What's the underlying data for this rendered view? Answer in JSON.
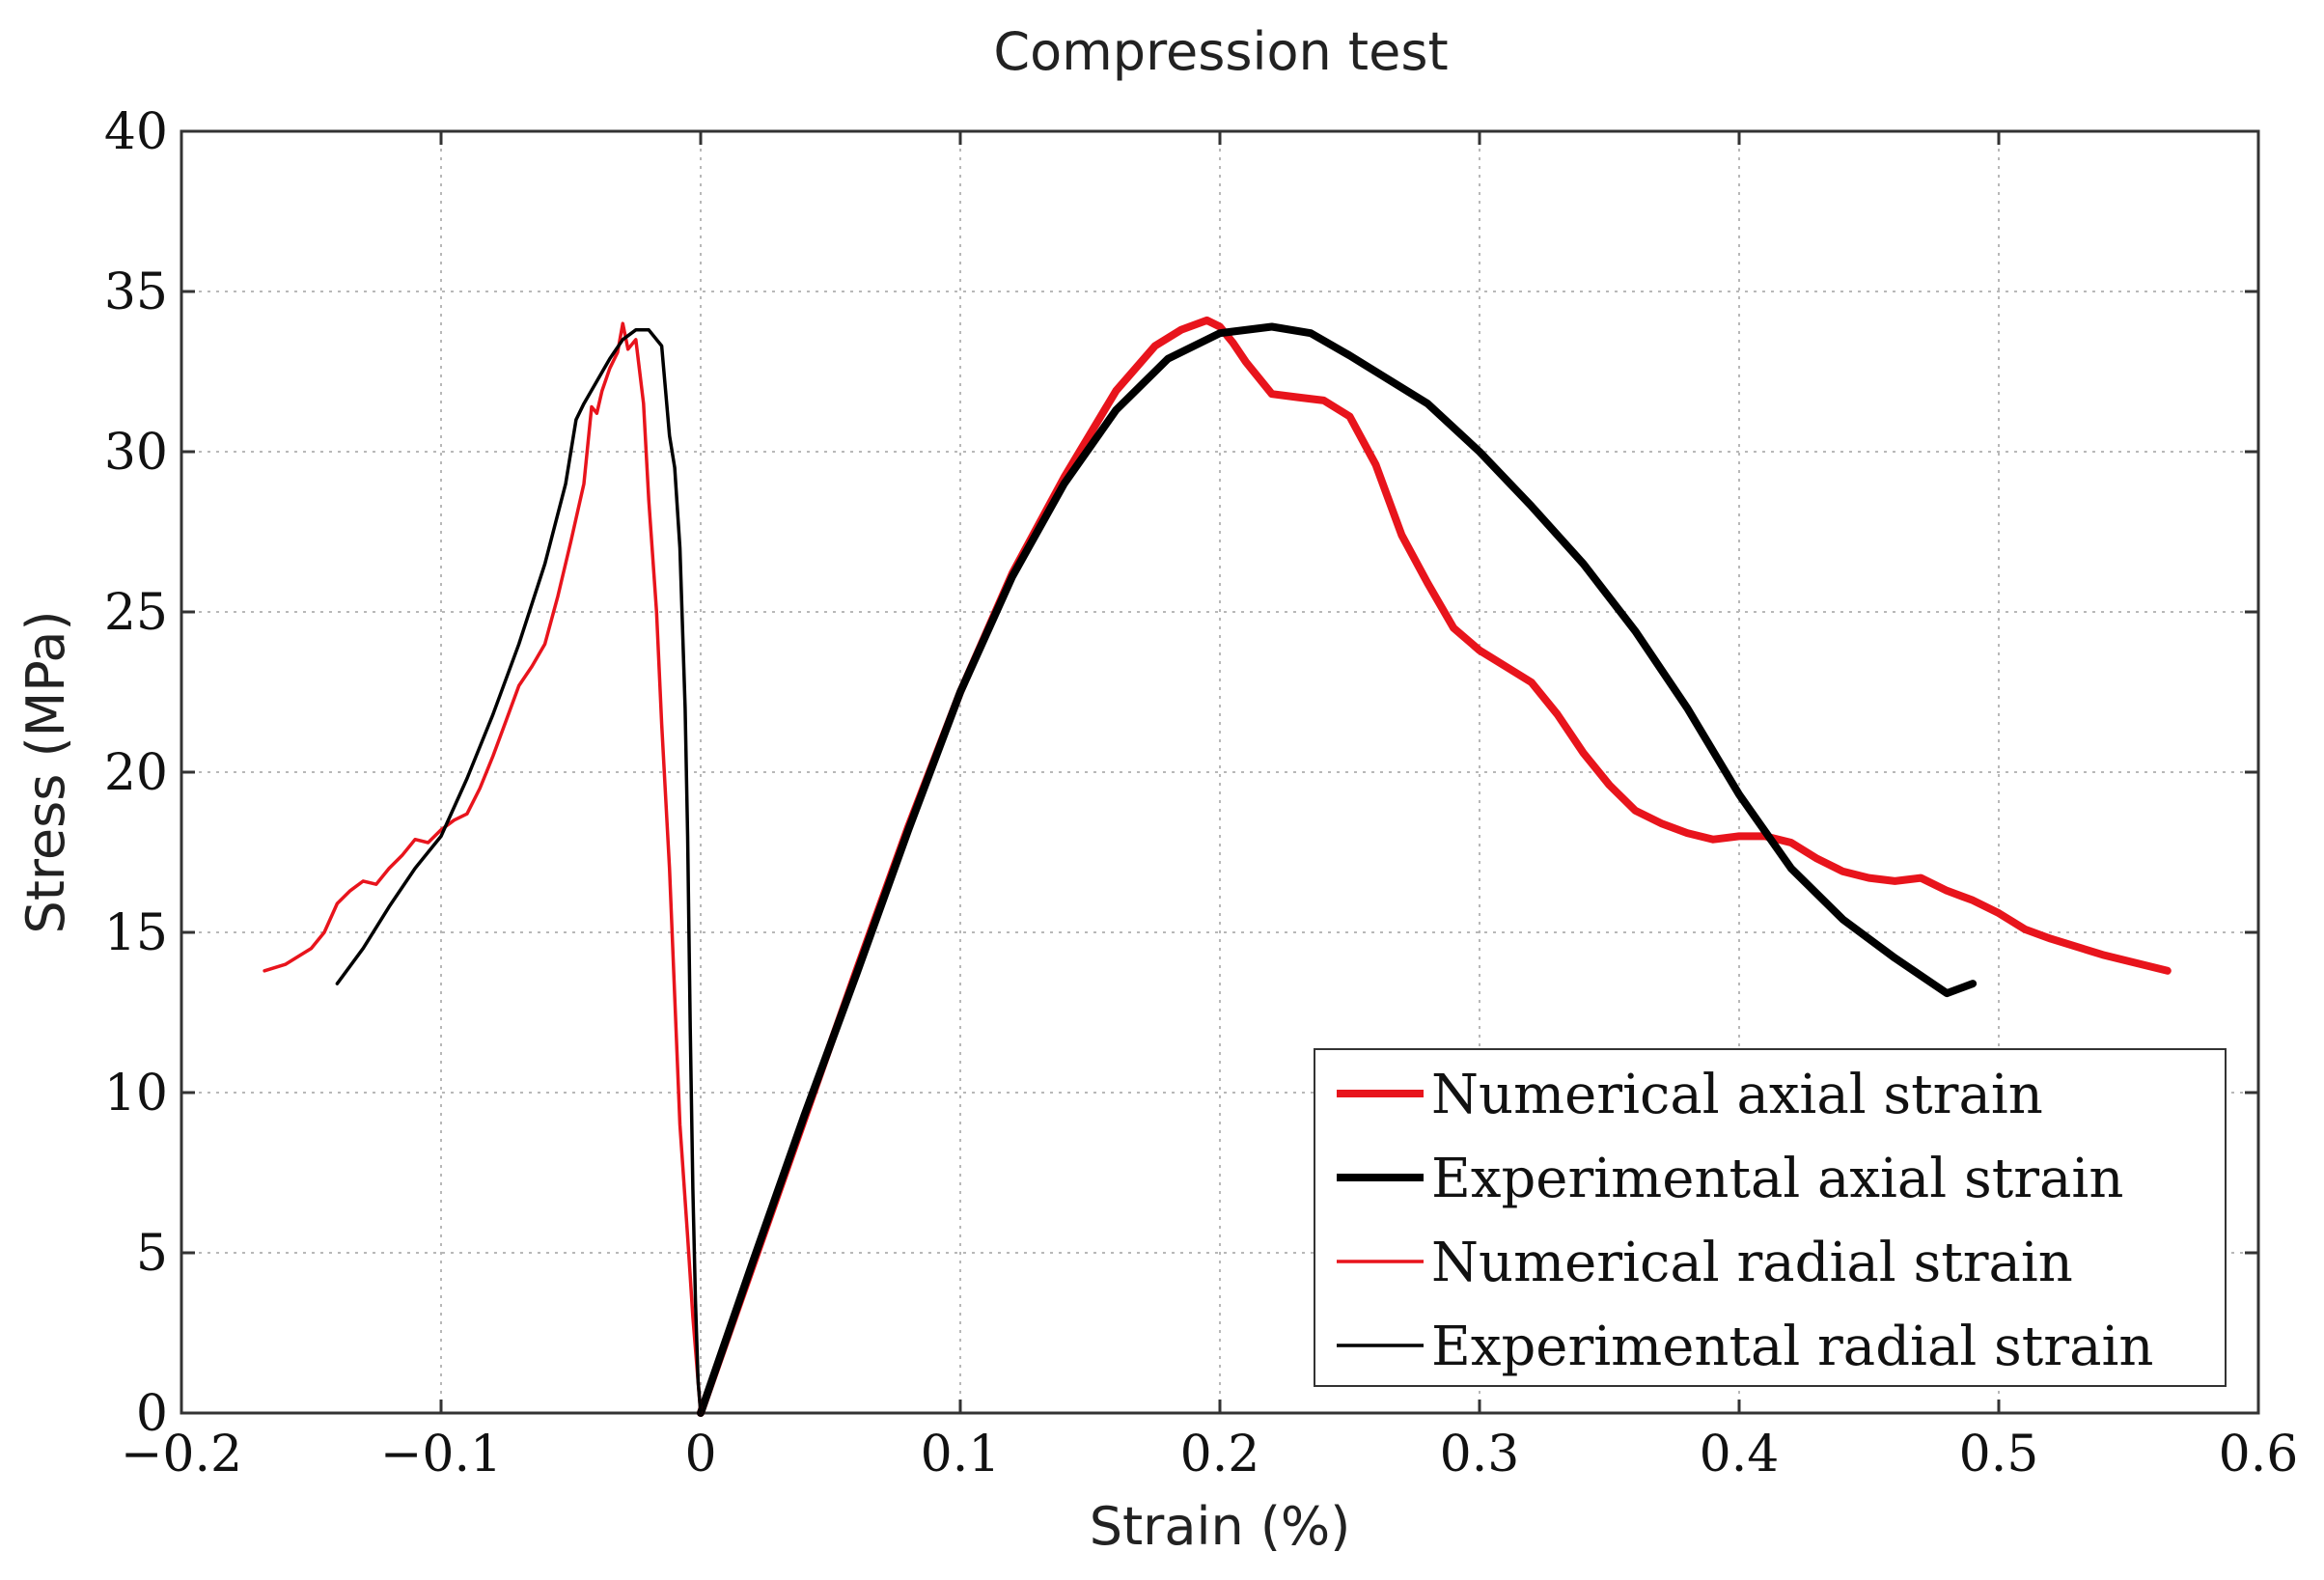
{
  "chart_data": {
    "type": "line",
    "title": "Compression test",
    "xlabel": "Strain (%)",
    "ylabel": "Stress (MPa)",
    "xlim": [
      -0.2,
      0.6
    ],
    "ylim": [
      0,
      40
    ],
    "xticks": [
      -0.2,
      -0.1,
      0,
      0.1,
      0.2,
      0.3,
      0.4,
      0.5,
      0.6
    ],
    "xtick_labels": [
      "−0.2",
      "−0.1",
      "0",
      "0.1",
      "0.2",
      "0.3",
      "0.4",
      "0.5",
      "0.6"
    ],
    "yticks": [
      0,
      5,
      10,
      15,
      20,
      25,
      30,
      35,
      40
    ],
    "ytick_labels": [
      "0",
      "5",
      "10",
      "15",
      "20",
      "25",
      "30",
      "35",
      "40"
    ],
    "grid": true,
    "legend_position": "bottom-right",
    "series": [
      {
        "name": "Numerical axial strain",
        "color": "#e8141c",
        "style": "thick",
        "x": [
          0,
          0.02,
          0.04,
          0.06,
          0.08,
          0.1,
          0.12,
          0.14,
          0.16,
          0.175,
          0.185,
          0.195,
          0.2,
          0.205,
          0.21,
          0.22,
          0.23,
          0.24,
          0.25,
          0.26,
          0.27,
          0.28,
          0.29,
          0.3,
          0.31,
          0.32,
          0.33,
          0.34,
          0.35,
          0.36,
          0.37,
          0.38,
          0.39,
          0.4,
          0.41,
          0.42,
          0.43,
          0.44,
          0.45,
          0.46,
          0.47,
          0.48,
          0.49,
          0.5,
          0.51,
          0.52,
          0.54,
          0.565
        ],
        "y": [
          0,
          4.6,
          9.2,
          13.8,
          18.3,
          22.5,
          26.2,
          29.2,
          31.9,
          33.3,
          33.8,
          34.1,
          33.9,
          33.4,
          32.8,
          31.8,
          31.7,
          31.6,
          31.1,
          29.6,
          27.4,
          25.9,
          24.5,
          23.8,
          23.3,
          22.8,
          21.8,
          20.6,
          19.6,
          18.8,
          18.4,
          18.1,
          17.9,
          18.0,
          18.0,
          17.8,
          17.3,
          16.9,
          16.7,
          16.6,
          16.7,
          16.3,
          16.0,
          15.6,
          15.1,
          14.8,
          14.3,
          13.8
        ]
      },
      {
        "name": "Experimental axial strain",
        "color": "#000000",
        "style": "thick",
        "x": [
          0,
          0.02,
          0.04,
          0.06,
          0.08,
          0.1,
          0.12,
          0.14,
          0.16,
          0.18,
          0.2,
          0.22,
          0.235,
          0.25,
          0.26,
          0.28,
          0.3,
          0.32,
          0.34,
          0.36,
          0.38,
          0.4,
          0.42,
          0.44,
          0.46,
          0.48,
          0.49
        ],
        "y": [
          0,
          4.7,
          9.3,
          13.7,
          18.2,
          22.5,
          26.1,
          29.0,
          31.3,
          32.9,
          33.7,
          33.9,
          33.7,
          33.0,
          32.5,
          31.5,
          30.0,
          28.3,
          26.5,
          24.4,
          22.0,
          19.3,
          17.0,
          15.4,
          14.2,
          13.1,
          13.4
        ]
      },
      {
        "name": "Numerical radial strain",
        "color": "#e8141c",
        "style": "thin",
        "x": [
          -0.168,
          -0.16,
          -0.15,
          -0.145,
          -0.14,
          -0.135,
          -0.13,
          -0.125,
          -0.12,
          -0.115,
          -0.11,
          -0.105,
          -0.1,
          -0.095,
          -0.09,
          -0.085,
          -0.08,
          -0.075,
          -0.07,
          -0.065,
          -0.06,
          -0.055,
          -0.05,
          -0.045,
          -0.042,
          -0.04,
          -0.038,
          -0.035,
          -0.032,
          -0.03,
          -0.028,
          -0.025,
          -0.022,
          -0.02,
          -0.017,
          -0.015,
          -0.012,
          -0.01,
          -0.008,
          -0.005,
          -0.003,
          -0.001,
          0.0
        ],
        "y": [
          13.8,
          14.0,
          14.5,
          15.0,
          15.9,
          16.3,
          16.6,
          16.5,
          17.0,
          17.4,
          17.9,
          17.8,
          18.2,
          18.5,
          18.7,
          19.5,
          20.5,
          21.6,
          22.7,
          23.3,
          24.0,
          25.5,
          27.2,
          29.0,
          31.4,
          31.2,
          31.9,
          32.6,
          33.1,
          34.0,
          33.2,
          33.5,
          31.5,
          28.5,
          25.0,
          21.5,
          17.0,
          13.0,
          9.0,
          5.5,
          3.0,
          1.0,
          0.0
        ]
      },
      {
        "name": "Experimental radial strain",
        "color": "#000000",
        "style": "thin",
        "x": [
          -0.14,
          -0.13,
          -0.12,
          -0.11,
          -0.1,
          -0.09,
          -0.08,
          -0.07,
          -0.06,
          -0.052,
          -0.048,
          -0.045,
          -0.04,
          -0.035,
          -0.03,
          -0.025,
          -0.02,
          -0.015,
          -0.012,
          -0.01,
          -0.008,
          -0.006,
          -0.005,
          -0.004,
          -0.003,
          -0.002,
          -0.001,
          0.0
        ],
        "y": [
          13.4,
          14.5,
          15.8,
          17.0,
          18.0,
          19.8,
          21.8,
          24.0,
          26.5,
          29.0,
          31.0,
          31.5,
          32.2,
          32.9,
          33.5,
          33.8,
          33.8,
          33.3,
          30.5,
          29.5,
          27.0,
          22.0,
          18.0,
          12.0,
          7.0,
          3.5,
          1.0,
          0.0
        ]
      }
    ]
  }
}
